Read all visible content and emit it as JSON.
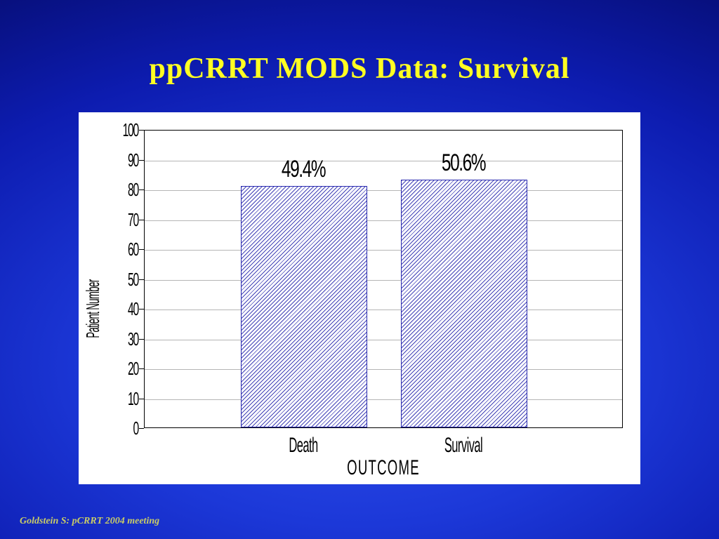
{
  "slide": {
    "title": "ppCRRT MODS Data: Survival",
    "footer": "Goldstein S: pCRRT 2004 meeting"
  },
  "colors": {
    "title_text": "#ffff22",
    "background_blue": "#1c38d8",
    "bar_hatch": "#2d2daf",
    "panel": "#ffffff",
    "footer_text": "#c9cc66"
  },
  "chart_data": {
    "type": "bar",
    "categories": [
      "Death",
      "Survival"
    ],
    "values": [
      81,
      83
    ],
    "bar_labels": [
      "49.4%",
      "50.6%"
    ],
    "title": "",
    "xlabel": "OUTCOME",
    "ylabel": "Patient Number",
    "ylim": [
      0,
      100
    ],
    "ytick_step": 10,
    "ytick_labels": [
      "0",
      "10",
      "20",
      "30",
      "40",
      "50",
      "60",
      "70",
      "80",
      "90",
      "100"
    ],
    "grid": "horizontal",
    "legend": "none",
    "bar_style": "white fill with blue diagonal hatch"
  }
}
